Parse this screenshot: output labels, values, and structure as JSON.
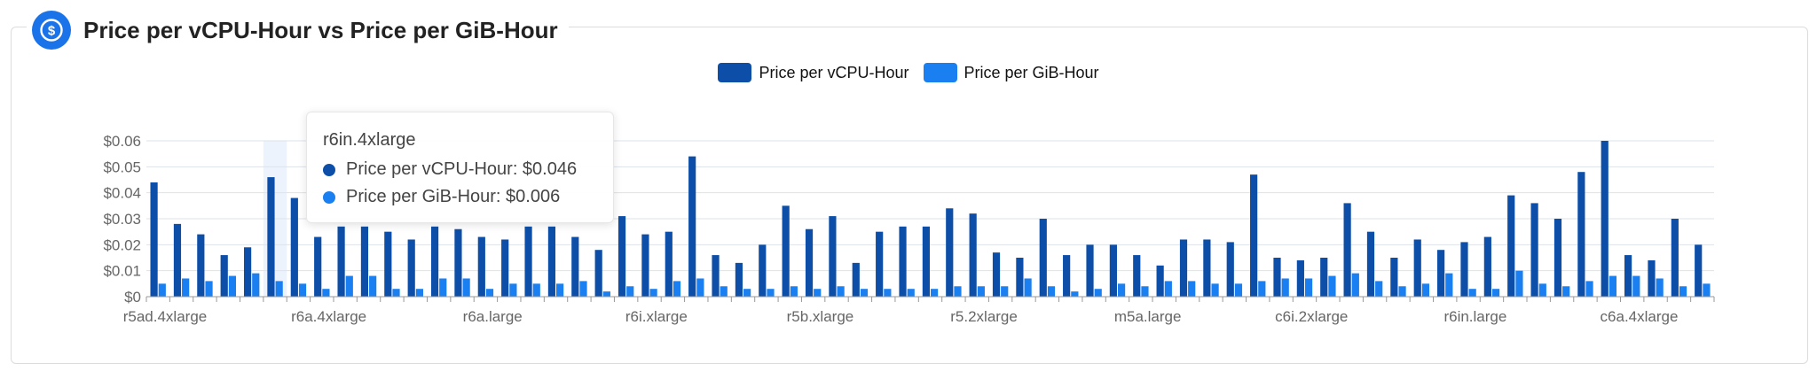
{
  "header": {
    "title": "Price per vCPU-Hour vs Price per GiB-Hour",
    "icon": "dollar-coin-icon"
  },
  "colors": {
    "vcpu": "#0d4fa8",
    "gib": "#1a7ff0",
    "icon_bg": "#1a73e8"
  },
  "tooltip": {
    "title": "r6in.4xlarge",
    "rows": [
      {
        "label": "Price per vCPU-Hour: $0.046"
      },
      {
        "label": "Price per GiB-Hour: $0.006"
      }
    ]
  },
  "chart_data": {
    "type": "bar",
    "legend_position": "top-center",
    "grid": true,
    "ylim": [
      0,
      0.06
    ],
    "y_ticks": [
      "$0",
      "$0.01",
      "$0.02",
      "$0.03",
      "$0.04",
      "$0.05",
      "$0.06"
    ],
    "x_tick_labels": [
      "r5ad.4xlarge",
      "r6a.4xlarge",
      "r6a.large",
      "r6i.xlarge",
      "r5b.xlarge",
      "r5.2xlarge",
      "m5a.large",
      "c6i.2xlarge",
      "r6in.large",
      "c6a.4xlarge"
    ],
    "categories": [
      "r5ad.4xlarge",
      "",
      "",
      "",
      "",
      "r6in.4xlarge",
      "",
      "r6a.4xlarge",
      "",
      "",
      "",
      "",
      "",
      "",
      "r6a.large",
      "",
      "",
      "",
      "",
      "",
      "",
      "r6i.xlarge",
      "",
      "",
      "",
      "",
      "",
      "",
      "r5b.xlarge",
      "",
      "",
      "",
      "",
      "",
      "",
      "r5.2xlarge",
      "",
      "",
      "",
      "",
      "",
      "",
      "m5a.large",
      "",
      "",
      "",
      "",
      "",
      "",
      "c6i.2xlarge",
      "",
      "",
      "",
      "",
      "",
      "",
      "r6in.large",
      "",
      "",
      "",
      "",
      "",
      "",
      "c6a.4xlarge",
      "",
      "",
      ""
    ],
    "series": [
      {
        "name": "Price per vCPU-Hour",
        "values": [
          0.044,
          0.028,
          0.024,
          0.016,
          0.019,
          0.046,
          0.038,
          0.023,
          0.027,
          0.027,
          0.025,
          0.022,
          0.027,
          0.026,
          0.023,
          0.022,
          0.027,
          0.027,
          0.023,
          0.018,
          0.031,
          0.024,
          0.025,
          0.054,
          0.016,
          0.013,
          0.02,
          0.035,
          0.026,
          0.031,
          0.013,
          0.025,
          0.027,
          0.027,
          0.034,
          0.032,
          0.017,
          0.015,
          0.03,
          0.016,
          0.02,
          0.02,
          0.016,
          0.012,
          0.022,
          0.022,
          0.021,
          0.047,
          0.015,
          0.014,
          0.015,
          0.036,
          0.025,
          0.015,
          0.022,
          0.018,
          0.021,
          0.023,
          0.039,
          0.036,
          0.03,
          0.048,
          0.06,
          0.016,
          0.014,
          0.03,
          0.02
        ]
      },
      {
        "name": "Price per GiB-Hour",
        "values": [
          0.005,
          0.007,
          0.006,
          0.008,
          0.009,
          0.006,
          0.005,
          0.003,
          0.008,
          0.008,
          0.003,
          0.003,
          0.007,
          0.007,
          0.003,
          0.005,
          0.005,
          0.005,
          0.006,
          0.002,
          0.004,
          0.003,
          0.006,
          0.007,
          0.004,
          0.003,
          0.003,
          0.004,
          0.003,
          0.004,
          0.003,
          0.003,
          0.003,
          0.003,
          0.004,
          0.004,
          0.004,
          0.007,
          0.004,
          0.002,
          0.003,
          0.005,
          0.004,
          0.006,
          0.006,
          0.005,
          0.005,
          0.006,
          0.007,
          0.007,
          0.008,
          0.009,
          0.006,
          0.004,
          0.005,
          0.009,
          0.003,
          0.003,
          0.01,
          0.005,
          0.004,
          0.006,
          0.008,
          0.008,
          0.007,
          0.004,
          0.005
        ]
      }
    ],
    "highlight_index": 5
  }
}
